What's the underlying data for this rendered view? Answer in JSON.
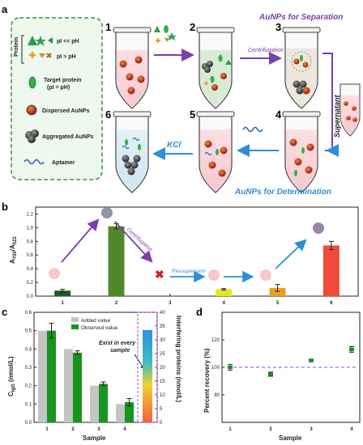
{
  "panel_a": {
    "letter": "a",
    "legend": {
      "protein_title": "Protein",
      "pi_low": "pI << pH",
      "pi_high": "pI > pH",
      "target_line1": "Target protein",
      "target_line2": "(pI = pH)",
      "dispersed": "Dispersed AuNPs",
      "aggregated": "Aggregated AuNPs",
      "aptamer": "Aptamer"
    },
    "separation_title": "AuNPs  for Separation",
    "determination_title": "AuNPs  for Determination",
    "steps": [
      "1",
      "2",
      "3",
      "4",
      "5",
      "6"
    ],
    "centrifugation": "Centrifugation",
    "supernatant": "Supernatant",
    "kcl": "KCl"
  },
  "panel_b": {
    "letter": "b",
    "ylabel": "A700/A522",
    "ylabel_main": "A",
    "ylabel_sub1": "700",
    "ylabel_sep": "/A",
    "ylabel_sub2": "522",
    "centrifugation": "Centrifugation",
    "resuspension": "Resuspension",
    "colors": {
      "s1": "#1f5a1f",
      "s2": "#4f8a2a",
      "s4": "#e6e61a",
      "s5": "#e8a020",
      "s6": "#f24a3a"
    }
  },
  "panel_c": {
    "letter": "c",
    "ylabel_left": "C",
    "ylabel_left_sub": "IgG",
    "ylabel_left_unit": " (nmol/L)",
    "ylabel_right": "Interfering proteins (nmol/L)",
    "xlabel": "Sample",
    "legend_added": "Added value",
    "legend_observed": "Observed value",
    "annotation_line1": "Exist in every",
    "annotation_line2": "sample",
    "colors": {
      "added": "#c4c4c4",
      "observed": "#16961c"
    }
  },
  "panel_d": {
    "letter": "d",
    "ylabel": "Percent recovery (%)",
    "xlabel": "Sample"
  },
  "chart_data": [
    {
      "id": "b",
      "type": "bar",
      "categories": [
        "1",
        "2",
        "3",
        "4",
        "5",
        "6"
      ],
      "values": [
        0.08,
        1.02,
        0,
        0.1,
        0.12,
        0.74
      ],
      "errors": [
        0.02,
        0.04,
        0,
        0.01,
        0.05,
        0.06
      ],
      "ylim": [
        0,
        1.3
      ],
      "yticks": [
        "0.0",
        "0.2",
        "0.4",
        "0.6",
        "0.8",
        "1.0",
        "1.2"
      ]
    },
    {
      "id": "c",
      "type": "bar",
      "categories": [
        "1",
        "2",
        "3",
        "4"
      ],
      "xlabel": "Sample",
      "series": [
        {
          "name": "Added value",
          "values": [
            0.5,
            0.4,
            0.2,
            0.1
          ]
        },
        {
          "name": "Observed value",
          "values": [
            0.5,
            0.38,
            0.21,
            0.11
          ],
          "errors": [
            0.04,
            0.01,
            0.01,
            0.02
          ]
        }
      ],
      "ylim": [
        0,
        0.6
      ],
      "yticks": [
        "0.0",
        "0.1",
        "0.2",
        "0.3",
        "0.4",
        "0.5",
        "0.6"
      ],
      "right_axis": {
        "ylim": [
          0,
          40
        ],
        "yticks": [
          "0",
          "5",
          "10",
          "15",
          "20",
          "25",
          "30",
          "35",
          "40"
        ]
      }
    },
    {
      "id": "d",
      "type": "scatter",
      "categories": [
        "1",
        "2",
        "3",
        "4"
      ],
      "xlabel": "Sample",
      "ylabel": "Percent recovery (%)",
      "values": [
        100,
        95,
        105,
        113
      ],
      "errors": [
        2,
        1.5,
        1,
        2
      ],
      "reference_line": 100,
      "ylim": [
        60,
        140
      ],
      "yticks": [
        "80",
        "100",
        "120"
      ]
    }
  ]
}
